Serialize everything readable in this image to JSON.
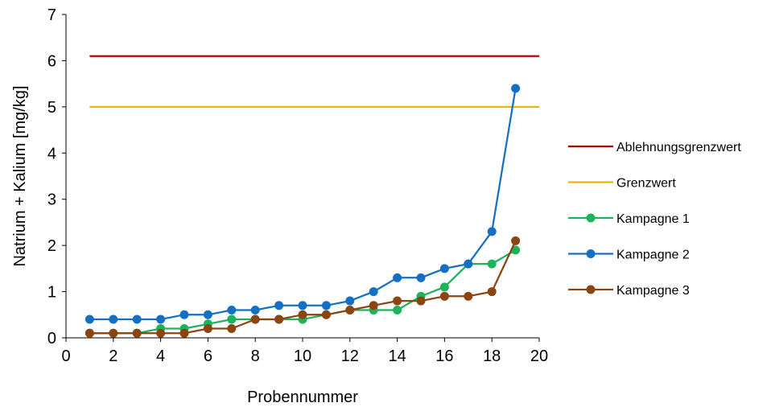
{
  "chart_data": {
    "type": "line",
    "xlabel": "Probennummer",
    "ylabel": "Natrium + Kalium [mg/kg]",
    "xlim": [
      0,
      20
    ],
    "ylim": [
      0,
      7
    ],
    "xticks": [
      "0",
      "2",
      "4",
      "6",
      "8",
      "10",
      "12",
      "14",
      "16",
      "18",
      "20"
    ],
    "yticks": [
      "0",
      "1",
      "2",
      "3",
      "4",
      "5",
      "6",
      "7"
    ],
    "grid": false,
    "legend_position": "right",
    "series": [
      {
        "name": "Ablehnungsgrenzwert",
        "color": "#C00000",
        "markers": false,
        "x": [
          1,
          20
        ],
        "y": [
          6.1,
          6.1
        ]
      },
      {
        "name": "Grenzwert",
        "color": "#F5B400",
        "markers": false,
        "x": [
          1,
          20
        ],
        "y": [
          5.0,
          5.0
        ]
      },
      {
        "name": "Kampagne 1",
        "color": "#1DB35A",
        "markers": true,
        "x": [
          1,
          2,
          3,
          4,
          5,
          6,
          7,
          8,
          9,
          10,
          11,
          12,
          13,
          14,
          15,
          16,
          17,
          18,
          19
        ],
        "y": [
          0.1,
          0.1,
          0.1,
          0.2,
          0.2,
          0.3,
          0.4,
          0.4,
          0.4,
          0.4,
          0.5,
          0.6,
          0.6,
          0.6,
          0.9,
          1.1,
          1.6,
          1.6,
          1.9
        ]
      },
      {
        "name": "Kampagne 2",
        "color": "#1670C2",
        "markers": true,
        "x": [
          1,
          2,
          3,
          4,
          5,
          6,
          7,
          8,
          9,
          10,
          11,
          12,
          13,
          14,
          15,
          16,
          17,
          18,
          19
        ],
        "y": [
          0.4,
          0.4,
          0.4,
          0.4,
          0.5,
          0.5,
          0.6,
          0.6,
          0.7,
          0.7,
          0.7,
          0.8,
          1.0,
          1.3,
          1.3,
          1.5,
          1.6,
          2.3,
          5.4
        ]
      },
      {
        "name": "Kampagne 3",
        "color": "#8B4513",
        "markers": true,
        "x": [
          1,
          2,
          3,
          4,
          5,
          6,
          7,
          8,
          9,
          10,
          11,
          12,
          13,
          14,
          15,
          16,
          17,
          18,
          19
        ],
        "y": [
          0.1,
          0.1,
          0.1,
          0.1,
          0.1,
          0.2,
          0.2,
          0.4,
          0.4,
          0.5,
          0.5,
          0.6,
          0.7,
          0.8,
          0.8,
          0.9,
          0.9,
          1.0,
          2.1
        ]
      }
    ]
  }
}
